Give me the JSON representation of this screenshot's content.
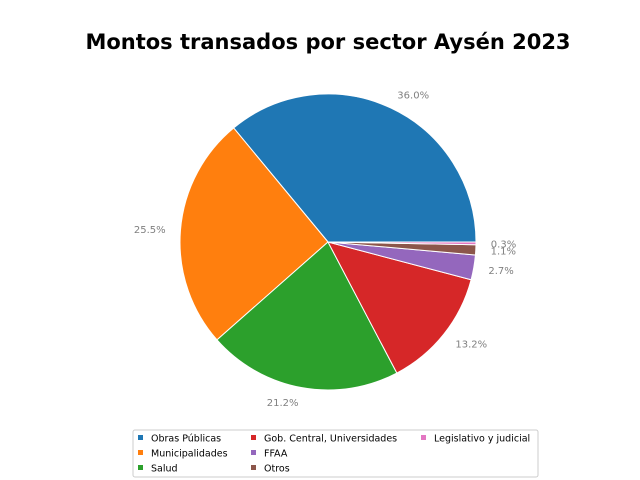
{
  "chart_data": {
    "type": "pie",
    "title": "Montos transados por sector Aysén 2023",
    "slices": [
      {
        "name": "Obras Públicas",
        "value": 36.0,
        "label": "36.0%",
        "color": "#1f77b4"
      },
      {
        "name": "Municipalidades",
        "value": 25.5,
        "label": "25.5%",
        "color": "#ff7f0e"
      },
      {
        "name": "Salud",
        "value": 21.2,
        "label": "21.2%",
        "color": "#2ca02c"
      },
      {
        "name": "Gob. Central, Universidades",
        "value": 13.2,
        "label": "13.2%",
        "color": "#d62728"
      },
      {
        "name": "FFAA",
        "value": 2.7,
        "label": "2.7%",
        "color": "#9467bd"
      },
      {
        "name": "Otros",
        "value": 1.1,
        "label": "1.1%",
        "color": "#8c564b"
      },
      {
        "name": "Legislativo y judicial",
        "value": 0.3,
        "label": "0.3%",
        "color": "#e377c2"
      }
    ],
    "start_angle_deg": 0,
    "direction": "counterclockwise",
    "legend_position": "bottom",
    "legend_columns": 3
  }
}
